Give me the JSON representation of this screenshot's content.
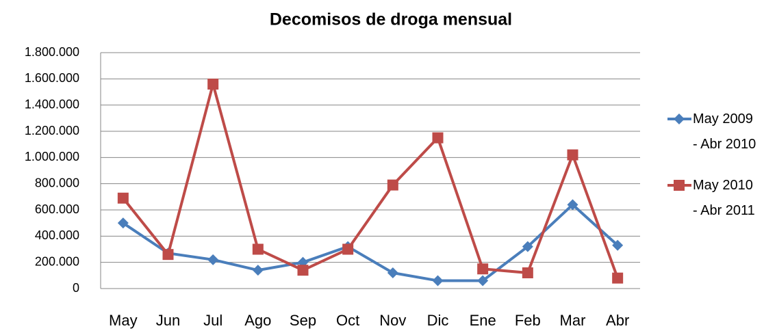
{
  "chart_data": {
    "type": "line",
    "title": "Decomisos de droga mensual",
    "categories": [
      "May",
      "Jun",
      "Jul",
      "Ago",
      "Sep",
      "Oct",
      "Nov",
      "Dic",
      "Ene",
      "Feb",
      "Mar",
      "Abr"
    ],
    "series": [
      {
        "name": "May 2009 - Abr 2010",
        "color": "#4a7ebb",
        "marker": "diamond",
        "values": [
          500000,
          270000,
          220000,
          140000,
          200000,
          320000,
          120000,
          60000,
          60000,
          320000,
          640000,
          330000
        ]
      },
      {
        "name": "May 2010 - Abr 2011",
        "color": "#be4b48",
        "marker": "square",
        "values": [
          690000,
          260000,
          1560000,
          300000,
          140000,
          300000,
          790000,
          1150000,
          150000,
          120000,
          1020000,
          80000
        ]
      }
    ],
    "ylim": [
      0,
      1800000
    ],
    "yticks": [
      0,
      {
        "value": 200000,
        "label": "200.000"
      },
      {
        "value": 400000,
        "label": "400.000"
      },
      {
        "value": 600000,
        "label": "600.000"
      },
      {
        "value": 800000,
        "label": "800.000"
      },
      {
        "value": 1000000,
        "label": "1.000.000"
      },
      {
        "value": 1200000,
        "label": "1.200.000"
      },
      {
        "value": 1400000,
        "label": "1.400.000"
      },
      {
        "value": 1600000,
        "label": "1.600.000"
      },
      {
        "value": 1800000,
        "label": "1.800.000"
      }
    ],
    "grid": true,
    "legend": "right"
  }
}
